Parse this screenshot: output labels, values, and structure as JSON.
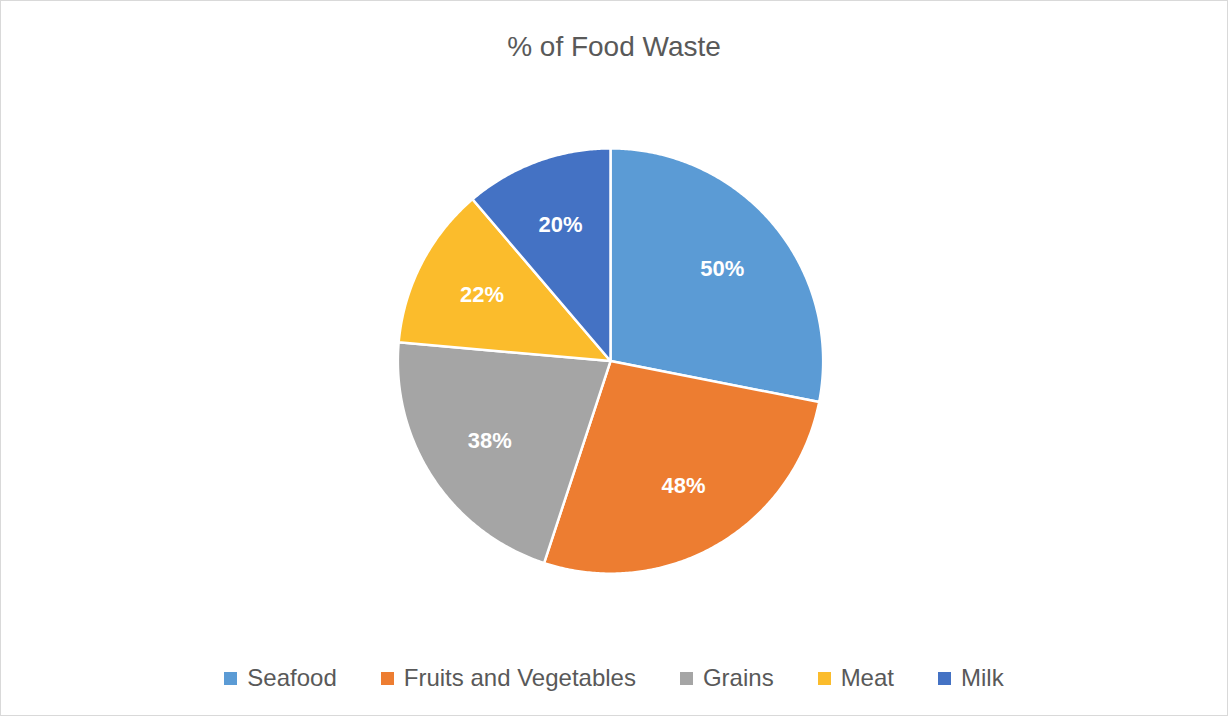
{
  "chart_data": {
    "type": "pie",
    "title": "% of Food Waste",
    "categories": [
      "Seafood",
      "Fruits and Vegetables",
      "Grains",
      "Meat",
      "Milk"
    ],
    "values": [
      50,
      48,
      38,
      22,
      20
    ],
    "value_labels": [
      "50%",
      "48%",
      "38%",
      "22%",
      "20%"
    ],
    "colors": [
      "#5b9bd5",
      "#ed7d31",
      "#a5a5a5",
      "#fbbc2c",
      "#4472c4"
    ],
    "data_labels": true,
    "legend": "bottom"
  }
}
